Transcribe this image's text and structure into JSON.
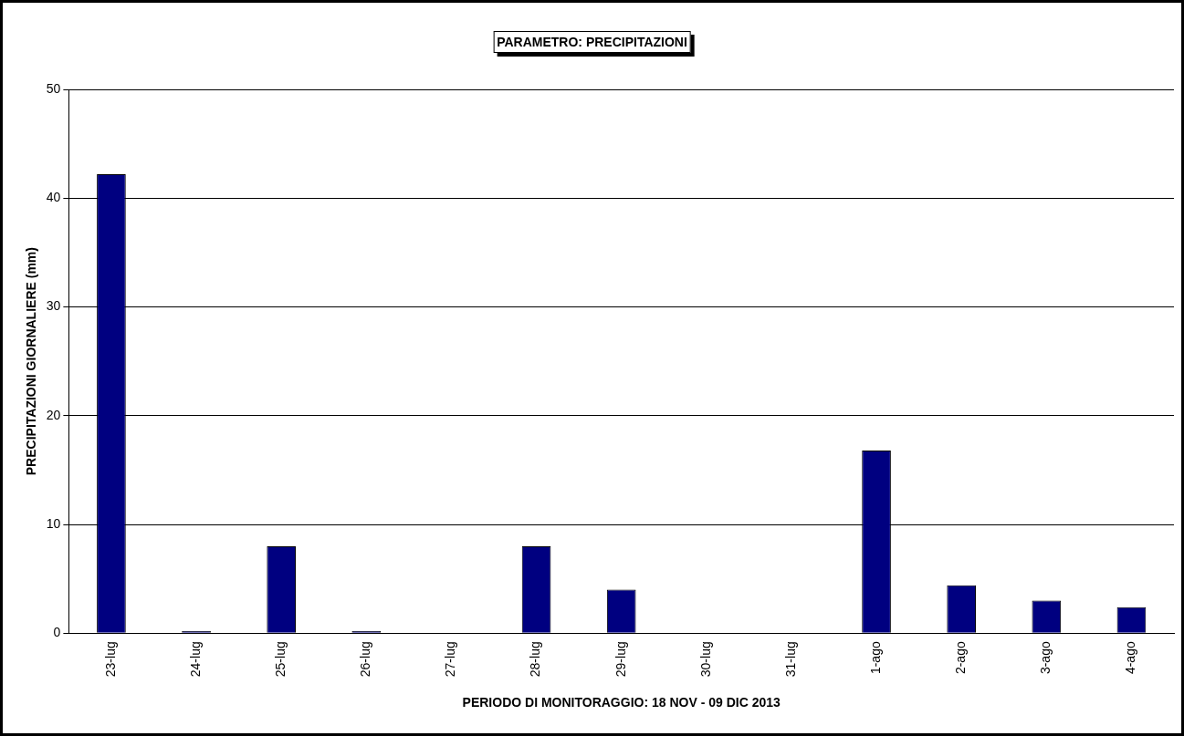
{
  "chart_data": {
    "type": "bar",
    "title": "PARAMETRO: PRECIPITAZIONI",
    "xlabel": "PERIODO DI MONITORAGGIO: 18 NOV - 09 DIC 2013",
    "ylabel": "PRECIPITAZIONI GIORNALIERE (mm)",
    "categories": [
      "23-lug",
      "24-lug",
      "25-lug",
      "26-lug",
      "27-lug",
      "28-lug",
      "29-lug",
      "30-lug",
      "31-lug",
      "1-ago",
      "2-ago",
      "3-ago",
      "4-ago"
    ],
    "values": [
      42.2,
      0.2,
      8.0,
      0.2,
      0,
      8.0,
      4.0,
      0,
      0,
      16.8,
      4.4,
      3.0,
      2.4
    ],
    "color": "#000080",
    "ylim": [
      0,
      50
    ],
    "yticks": [
      0,
      10,
      20,
      30,
      40,
      50
    ],
    "grid": "y",
    "legend": false
  }
}
